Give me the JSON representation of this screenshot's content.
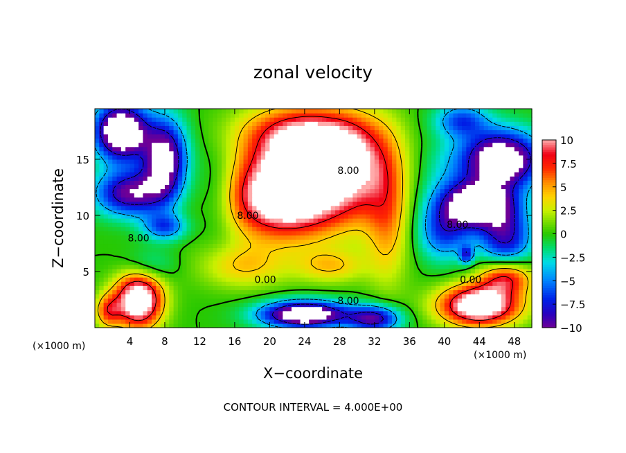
{
  "chart_data": {
    "type": "heatmap",
    "title": "zonal velocity",
    "xlabel": "X−coordinate",
    "ylabel": "Z−coordinate",
    "x_unit_left": "(×1000 m)",
    "x_unit_right": "(×1000 m)",
    "footer": "CONTOUR INTERVAL = 4.000E+00",
    "xlim": [
      0,
      50
    ],
    "ylim": [
      0,
      19.5
    ],
    "x_ticks": [
      4,
      8,
      12,
      16,
      20,
      24,
      28,
      32,
      36,
      40,
      44,
      48
    ],
    "x_tick_labels": [
      "4",
      "8",
      "12",
      "16",
      "20",
      "24",
      "28",
      "32",
      "36",
      "40",
      "44",
      "48"
    ],
    "y_ticks": [
      5,
      10,
      15
    ],
    "y_tick_labels": [
      "5",
      "10",
      "15"
    ],
    "colorbar": {
      "min": -10,
      "max": 10,
      "ticks": [
        10,
        7.5,
        5,
        2.5,
        0,
        -2.5,
        -5,
        -7.5,
        -10
      ],
      "tick_labels": [
        "10",
        "7.5",
        "5",
        "2.5",
        "0",
        "−2.5",
        "−5",
        "−7.5",
        "−10"
      ]
    },
    "contour_interval": 4.0,
    "contour_labels": [
      {
        "text": "8.00",
        "x": 29,
        "y": 14
      },
      {
        "text": "8.00",
        "x": 17.5,
        "y": 10
      },
      {
        "text": "8.00",
        "x": 5,
        "y": 8
      },
      {
        "text": "0.00",
        "x": 19.5,
        "y": 4.3
      },
      {
        "text": "8.00",
        "x": 29,
        "y": 2.4
      },
      {
        "text": "8.00",
        "x": 41.5,
        "y": 9.2
      },
      {
        "text": "0.00",
        "x": 43,
        "y": 4.3
      }
    ],
    "features": [
      {
        "x": 22,
        "y": 11.5,
        "sx": 7,
        "sy": 3.5,
        "a": 14
      },
      {
        "x": 25,
        "y": 15,
        "sx": 7,
        "sy": 3,
        "a": 8
      },
      {
        "x": 30,
        "y": 14,
        "sx": 4,
        "sy": 4.5,
        "a": 5
      },
      {
        "x": 24,
        "y": 17.5,
        "sx": 7,
        "sy": 2.5,
        "a": 8
      },
      {
        "x": 33.5,
        "y": 10,
        "sx": 2.5,
        "sy": 6,
        "a": 5
      },
      {
        "x": 17,
        "y": 5.5,
        "sx": 5,
        "sy": 2,
        "a": 4
      },
      {
        "x": 27,
        "y": 5.5,
        "sx": 4,
        "sy": 1.5,
        "a": 4
      },
      {
        "x": 5,
        "y": 2.5,
        "sx": 2.7,
        "sy": 2.5,
        "a": 14
      },
      {
        "x": 1.5,
        "y": 1.5,
        "sx": 1.5,
        "sy": 1.5,
        "a": 6
      },
      {
        "x": 44,
        "y": 2,
        "sx": 4.5,
        "sy": 1.8,
        "a": 14
      },
      {
        "x": 47,
        "y": 4.5,
        "sx": 3,
        "sy": 1.5,
        "a": 8
      },
      {
        "x": 24,
        "y": 1.2,
        "sx": 5,
        "sy": 1.2,
        "a": -14
      },
      {
        "x": 32,
        "y": 0.8,
        "sx": 3,
        "sy": 1.2,
        "a": -9
      },
      {
        "x": 3,
        "y": 17.5,
        "sx": 3,
        "sy": 2.5,
        "a": -15
      },
      {
        "x": 8,
        "y": 15,
        "sx": 2.5,
        "sy": 3.5,
        "a": -12
      },
      {
        "x": 4,
        "y": 12,
        "sx": 4,
        "sy": 2,
        "a": -10
      },
      {
        "x": 8,
        "y": 9,
        "sx": 2.5,
        "sy": 1.2,
        "a": -6
      },
      {
        "x": 46.5,
        "y": 15,
        "sx": 4.5,
        "sy": 2.5,
        "a": -14
      },
      {
        "x": 44,
        "y": 11,
        "sx": 4,
        "sy": 2,
        "a": -14
      },
      {
        "x": 40,
        "y": 8.5,
        "sx": 3,
        "sy": 2.5,
        "a": -6
      },
      {
        "x": 47,
        "y": 8,
        "sx": 3,
        "sy": 2.5,
        "a": -8
      },
      {
        "x": 42.5,
        "y": 6.5,
        "sx": 0.8,
        "sy": 0.8,
        "a": -6
      },
      {
        "x": 42,
        "y": 18.5,
        "sx": 3,
        "sy": 1.5,
        "a": -6
      },
      {
        "x": 14,
        "y": 12,
        "sx": 2.5,
        "sy": 4,
        "a": -3
      },
      {
        "x": 40,
        "y": 13,
        "sx": 3,
        "sy": 4,
        "a": -2
      },
      {
        "x": 6,
        "y": 5.5,
        "sx": 3,
        "sy": 1.5,
        "a": -3
      }
    ]
  }
}
